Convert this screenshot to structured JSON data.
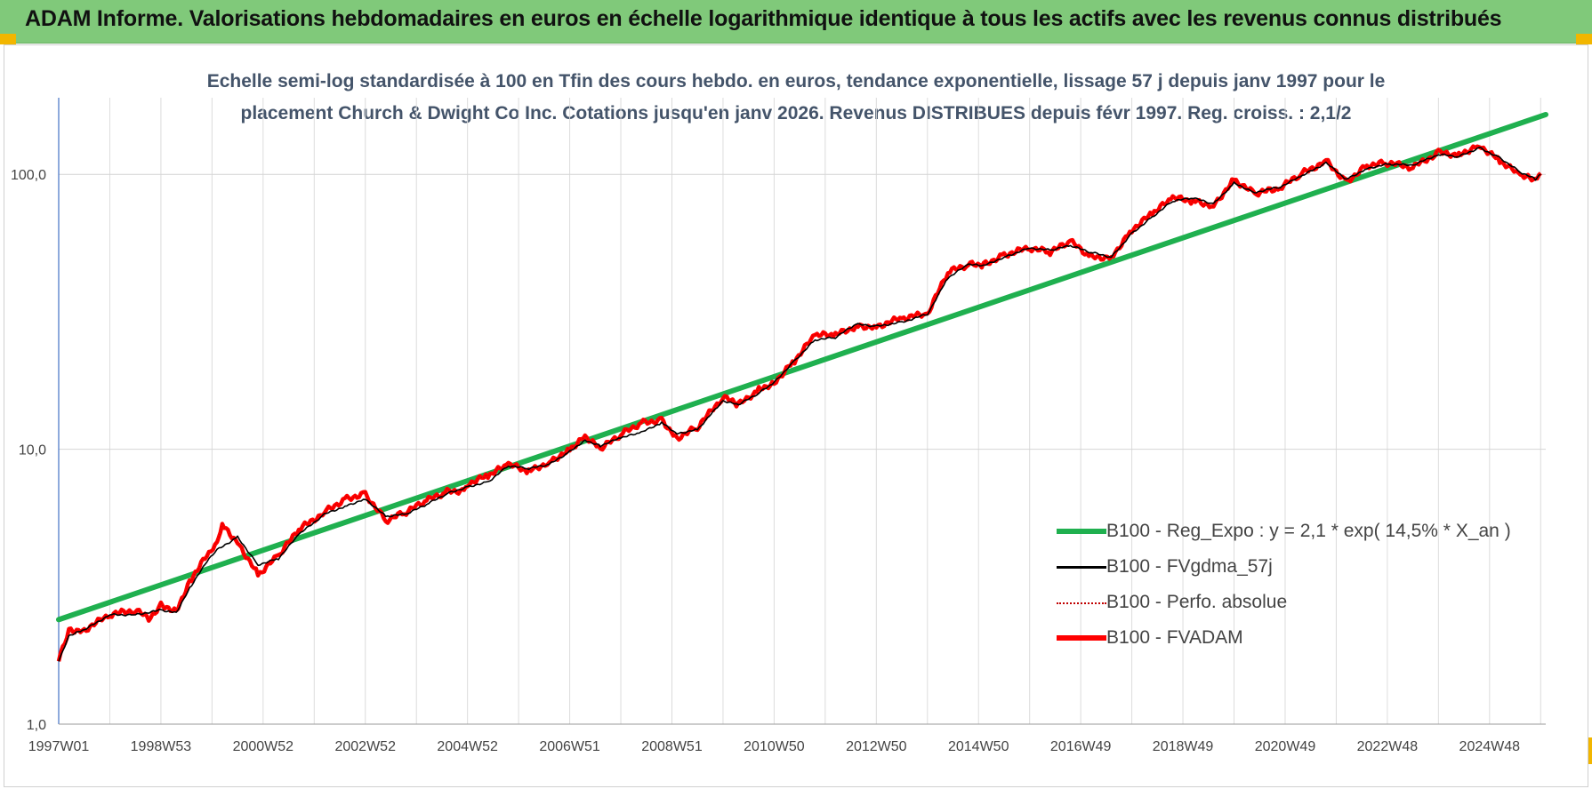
{
  "header": {
    "title": "ADAM Informe. Valorisations hebdomadaires en euros en échelle logarithmique identique à tous les actifs avec les revenus connus distribués"
  },
  "chart_data": {
    "type": "line",
    "title": "Echelle semi-log standardisée à 100 en Tfin des cours hebdo. en euros, tendance exponentielle, lissage 57 j depuis janv 1997 pour le placement Church & Dwight Co Inc. Cotations jusqu'en janv 2026. Revenus DISTRIBUES depuis févr 1997. Reg. croiss. : 2,1/2",
    "title_lines": [
      "Echelle semi-log standardisée à 100 en Tfin des cours hebdo. en euros, tendance exponentielle, lissage 57 j depuis janv 1997 pour le",
      "placement Church & Dwight Co Inc. Cotations jusqu'en janv 2026. Revenus DISTRIBUES depuis févr 1997. Reg. croiss. : 2,1/2"
    ],
    "y_scale": "log",
    "ylim": [
      1,
      190
    ],
    "xlim": [
      1997.0,
      2026.1
    ],
    "grid": true,
    "legend_position": "bottom-right",
    "y_ticks": [
      {
        "value": 1,
        "label": "1,0"
      },
      {
        "value": 10,
        "label": "10,0"
      },
      {
        "value": 100,
        "label": "100,0"
      }
    ],
    "x_ticks": [
      {
        "value": 1997.0,
        "label": "1997W01"
      },
      {
        "value": 1999.0,
        "label": "1998W53"
      },
      {
        "value": 2001.0,
        "label": "2000W52"
      },
      {
        "value": 2003.0,
        "label": "2002W52"
      },
      {
        "value": 2005.0,
        "label": "2004W52"
      },
      {
        "value": 2007.0,
        "label": "2006W51"
      },
      {
        "value": 2009.0,
        "label": "2008W51"
      },
      {
        "value": 2011.0,
        "label": "2010W50"
      },
      {
        "value": 2013.0,
        "label": "2012W50"
      },
      {
        "value": 2015.0,
        "label": "2014W50"
      },
      {
        "value": 2017.0,
        "label": "2016W49"
      },
      {
        "value": 2019.0,
        "label": "2018W49"
      },
      {
        "value": 2021.0,
        "label": "2020W49"
      },
      {
        "value": 2023.0,
        "label": "2022W48"
      },
      {
        "value": 2025.0,
        "label": "2024W48"
      }
    ],
    "series": [
      {
        "name": "B100 - Reg_Expo : y = 2,1 * exp( 14,5% *  X_an )",
        "color": "#1fb04f",
        "style": "solid-thick",
        "x": [
          1997.0,
          2026.1
        ],
        "y": [
          2.4,
          165
        ]
      },
      {
        "name": "B100 - FVgdma_57j",
        "color": "#000000",
        "style": "solid",
        "x": [
          1997.0,
          1997.2,
          1997.5,
          1998.0,
          1998.5,
          1999.0,
          1999.3,
          1999.6,
          1999.9,
          2000.1,
          2000.5,
          2000.9,
          2001.3,
          2001.7,
          2002.2,
          2002.6,
          2003.0,
          2003.4,
          2003.8,
          2004.2,
          2004.6,
          2005.0,
          2005.4,
          2005.8,
          2006.2,
          2006.6,
          2007.0,
          2007.3,
          2007.6,
          2008.0,
          2008.4,
          2008.8,
          2009.1,
          2009.5,
          2010.0,
          2010.3,
          2010.7,
          2011.0,
          2011.4,
          2011.8,
          2012.2,
          2012.6,
          2013.0,
          2013.5,
          2014.0,
          2014.4,
          2014.8,
          2015.1,
          2015.5,
          2016.0,
          2016.4,
          2016.8,
          2017.2,
          2017.6,
          2018.0,
          2018.4,
          2018.8,
          2019.2,
          2019.6,
          2020.0,
          2020.4,
          2020.9,
          2021.3,
          2021.8,
          2022.2,
          2022.6,
          2023.0,
          2023.5,
          2024.0,
          2024.4,
          2024.8,
          2025.2,
          2025.6,
          2025.9,
          2026.0
        ],
        "y": [
          1.7,
          2.1,
          2.2,
          2.5,
          2.5,
          2.6,
          2.55,
          3.2,
          3.9,
          4.3,
          4.8,
          3.8,
          4.0,
          4.9,
          5.8,
          6.2,
          6.6,
          5.7,
          5.8,
          6.3,
          6.9,
          7.3,
          7.6,
          8.7,
          8.5,
          8.8,
          9.8,
          10.8,
          10.3,
          11.0,
          11.5,
          12.5,
          11.4,
          11.8,
          15.0,
          14.5,
          16.0,
          17.5,
          21.0,
          25.0,
          25.5,
          28.5,
          28.0,
          29.0,
          31.0,
          42.0,
          47.0,
          46.5,
          50.0,
          54.0,
          53.0,
          55.0,
          52.0,
          50.0,
          61.0,
          70.0,
          80.0,
          82.0,
          78.0,
          93.0,
          86.0,
          90.0,
          98.0,
          110.0,
          96.0,
          105.0,
          109.0,
          108.0,
          118.0,
          116.0,
          125.0,
          115.0,
          102.0,
          96.0,
          100.0
        ]
      },
      {
        "name": "B100 - Perfo. absolue",
        "color": "#c00000",
        "style": "dotted"
      },
      {
        "name": "B100 - FVADAM",
        "color": "#ff0000",
        "style": "solid-thick",
        "x": [
          1997.0,
          1997.2,
          1997.5,
          1998.0,
          1998.5,
          1998.8,
          1999.0,
          1999.3,
          1999.6,
          1999.9,
          2000.1,
          2000.2,
          2000.5,
          2000.9,
          2001.3,
          2001.7,
          2002.2,
          2002.6,
          2003.0,
          2003.4,
          2003.8,
          2004.2,
          2004.6,
          2004.9,
          2005.0,
          2005.4,
          2005.8,
          2006.2,
          2006.6,
          2007.0,
          2007.3,
          2007.6,
          2008.0,
          2008.4,
          2008.8,
          2009.1,
          2009.5,
          2010.0,
          2010.3,
          2010.7,
          2011.0,
          2011.4,
          2011.8,
          2012.2,
          2012.6,
          2013.0,
          2013.5,
          2014.0,
          2014.4,
          2014.8,
          2015.1,
          2015.5,
          2016.0,
          2016.4,
          2016.8,
          2017.2,
          2017.6,
          2018.0,
          2018.4,
          2018.8,
          2019.2,
          2019.6,
          2020.0,
          2020.4,
          2020.9,
          2021.3,
          2021.8,
          2022.2,
          2022.6,
          2023.0,
          2023.5,
          2024.0,
          2024.4,
          2024.8,
          2025.2,
          2025.6,
          2025.9,
          2026.0
        ],
        "y": [
          1.7,
          2.2,
          2.2,
          2.5,
          2.6,
          2.4,
          2.7,
          2.6,
          3.4,
          4.1,
          4.5,
          5.3,
          4.6,
          3.5,
          4.1,
          5.1,
          5.9,
          6.6,
          6.9,
          5.5,
          5.9,
          6.5,
          7.0,
          7.1,
          7.5,
          8.0,
          8.8,
          8.3,
          9.0,
          10.0,
          11.2,
          10.0,
          11.3,
          12.5,
          12.8,
          11.0,
          12.0,
          15.5,
          14.5,
          16.5,
          17.5,
          21.0,
          26.0,
          26.0,
          28.0,
          28.0,
          30.0,
          31.0,
          44.0,
          47.0,
          47.0,
          51.0,
          54.0,
          52.0,
          57.0,
          50.0,
          50.0,
          63.0,
          72.0,
          82.0,
          80.0,
          77.0,
          96.0,
          85.0,
          89.0,
          100.0,
          112.0,
          94.0,
          108.0,
          110.0,
          106.0,
          120.0,
          118.0,
          128.0,
          112.0,
          99.0,
          95.0,
          101.0
        ]
      }
    ]
  }
}
